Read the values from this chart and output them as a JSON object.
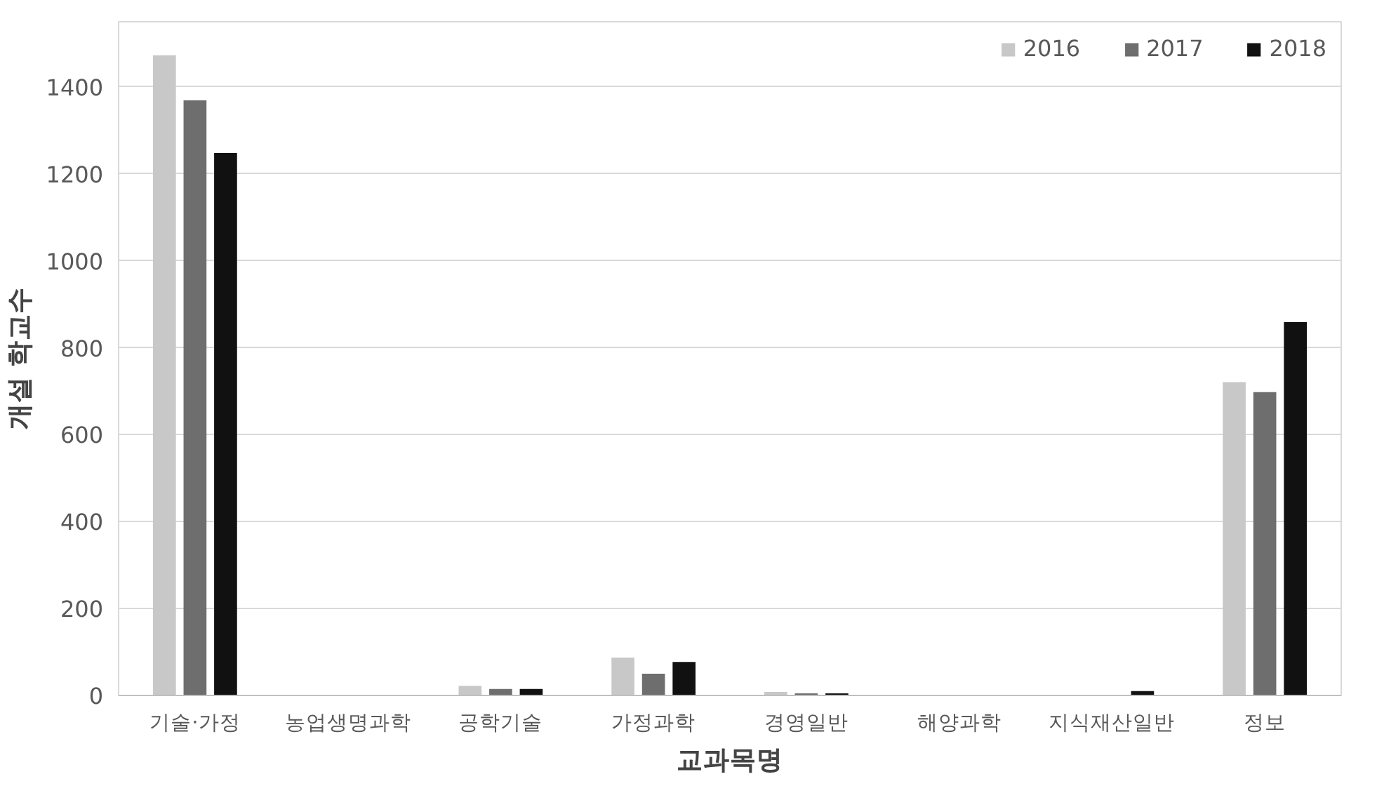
{
  "chart_data": {
    "type": "bar",
    "xlabel": "교과목명",
    "ylabel": "개설 학교수",
    "categories": [
      "기술·가정",
      "농업생명과학",
      "공학기술",
      "가정과학",
      "경영일반",
      "해양과학",
      "지식재산일반",
      "정보"
    ],
    "series": [
      {
        "name": "2016",
        "color": "#c8c8c8",
        "values": [
          1473,
          0,
          22,
          87,
          8,
          0,
          0,
          721
        ]
      },
      {
        "name": "2017",
        "color": "#6e6e6e",
        "values": [
          1369,
          0,
          15,
          50,
          5,
          0,
          0,
          698
        ]
      },
      {
        "name": "2018",
        "color": "#111111",
        "values": [
          1248,
          0,
          15,
          77,
          5,
          0,
          10,
          859
        ]
      }
    ],
    "ylim": [
      0,
      1550
    ],
    "yticks": [
      0,
      200,
      400,
      600,
      800,
      1000,
      1200,
      1400
    ],
    "grid": "y",
    "legend": "top right"
  }
}
